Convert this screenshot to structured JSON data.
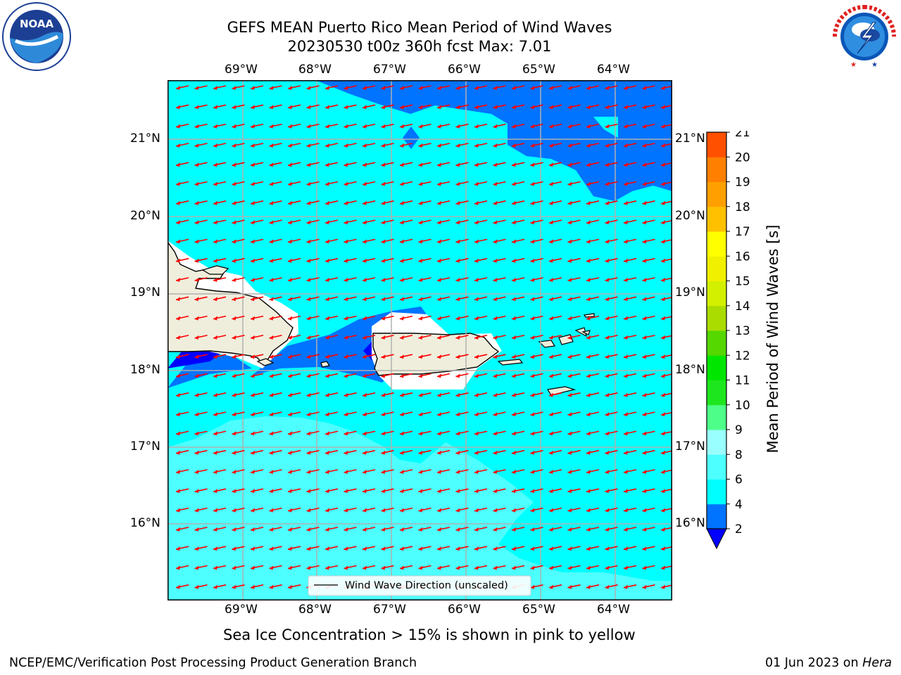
{
  "header": {
    "title_line1": "GEFS MEAN Puerto Rico Mean Period of Wind Waves",
    "title_line2": "20230530 t00z 360h fcst   Max: 7.01"
  },
  "logos": {
    "noaa_text": "NOAA",
    "noaa_ring_text": "NATIONAL OCEANIC AND ATMOSPHERIC ADMINISTRATION · U.S. DEPARTMENT OF COMMERCE",
    "nws_ring_text": "NATIONAL WEATHER SERVICE"
  },
  "map": {
    "lon_labels": [
      "69°W",
      "68°W",
      "67°W",
      "66°W",
      "65°W",
      "64°W"
    ],
    "lat_labels": [
      "21°N",
      "20°N",
      "19°N",
      "18°N",
      "17°N",
      "16°N"
    ],
    "legend_label": "Wind Wave Direction (unscaled)",
    "arrow_color": "#ff0000",
    "land_color": "#efeedc"
  },
  "colorbar": {
    "label": "Mean Period of Wind Waves [s]",
    "ticks": [
      "2",
      "4",
      "6",
      "8",
      "9",
      "10",
      "11",
      "12",
      "13",
      "14",
      "15",
      "16",
      "17",
      "18",
      "19",
      "20",
      "21"
    ],
    "colors": [
      "#0000ff",
      "#0073ff",
      "#00ffff",
      "#4dffff",
      "#99ffff",
      "#4dff88",
      "#1ee61e",
      "#00e600",
      "#55d700",
      "#aadc00",
      "#d2f000",
      "#f0f000",
      "#ffff00",
      "#ffc000",
      "#ffa000",
      "#ff8000",
      "#ff5000",
      "#ff2000",
      "#ff0000"
    ]
  },
  "footer": {
    "ice_note": "Sea Ice Concentration > 15% is shown in pink to yellow",
    "branch": "NCEP/EMC/Verification Post Processing Product Generation Branch",
    "date": "01 Jun 2023 on ",
    "machine": "Hera"
  }
}
